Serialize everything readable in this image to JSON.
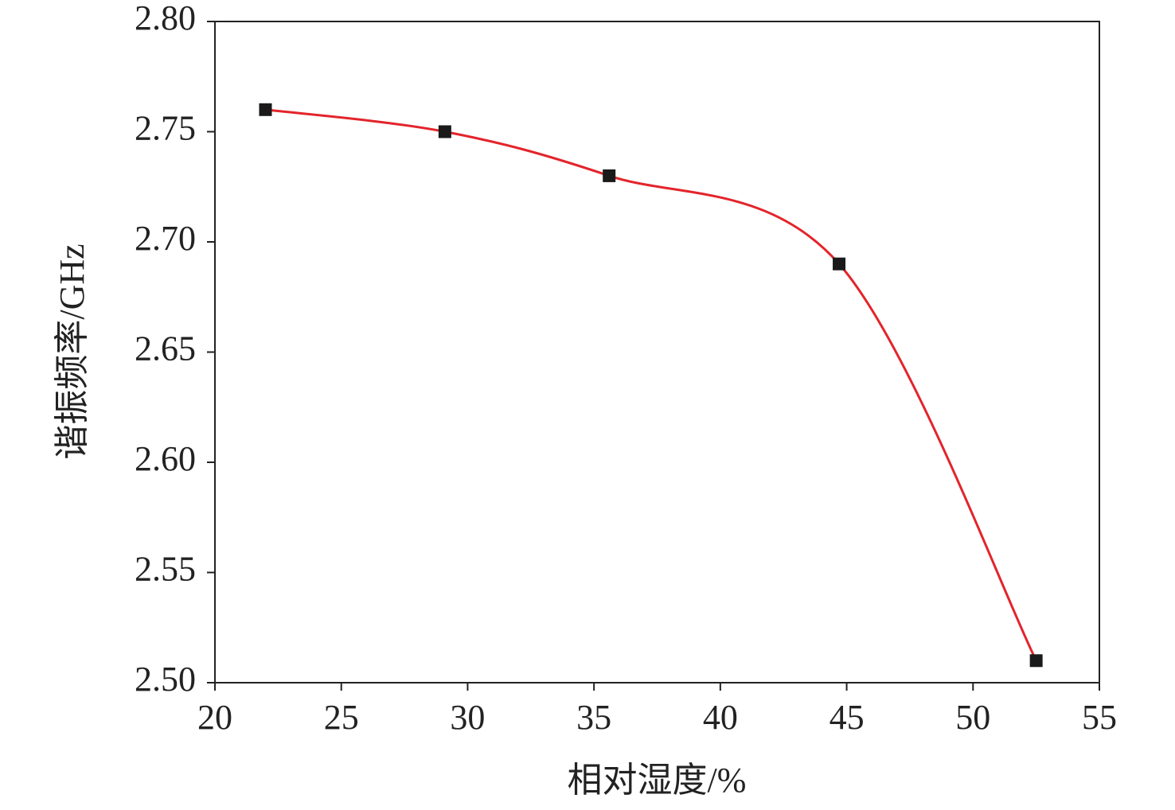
{
  "chart_data": {
    "type": "scatter",
    "x_label": "相对湿度/%",
    "y_label": "谐振频率/GHz",
    "x": [
      22,
      29.1,
      35.6,
      44.7,
      52.5
    ],
    "series": [
      {
        "values": [
          2.76,
          2.75,
          2.73,
          2.69,
          2.51
        ],
        "color": "#1a1a1a",
        "line_color": "#e3242b"
      }
    ],
    "xlim": [
      20,
      55
    ],
    "xticks": [
      20,
      25,
      30,
      35,
      40,
      45,
      50,
      55
    ],
    "ylim": [
      2.5,
      2.8
    ],
    "yticks": [
      {
        "value": 2.5,
        "label": "2.50"
      },
      2.55,
      {
        "value": 2.6,
        "label": "2.60"
      },
      2.65,
      {
        "value": 2.7,
        "label": "2.70"
      },
      2.75,
      {
        "value": 2.8,
        "label": "2.80"
      }
    ],
    "grid": false
  }
}
